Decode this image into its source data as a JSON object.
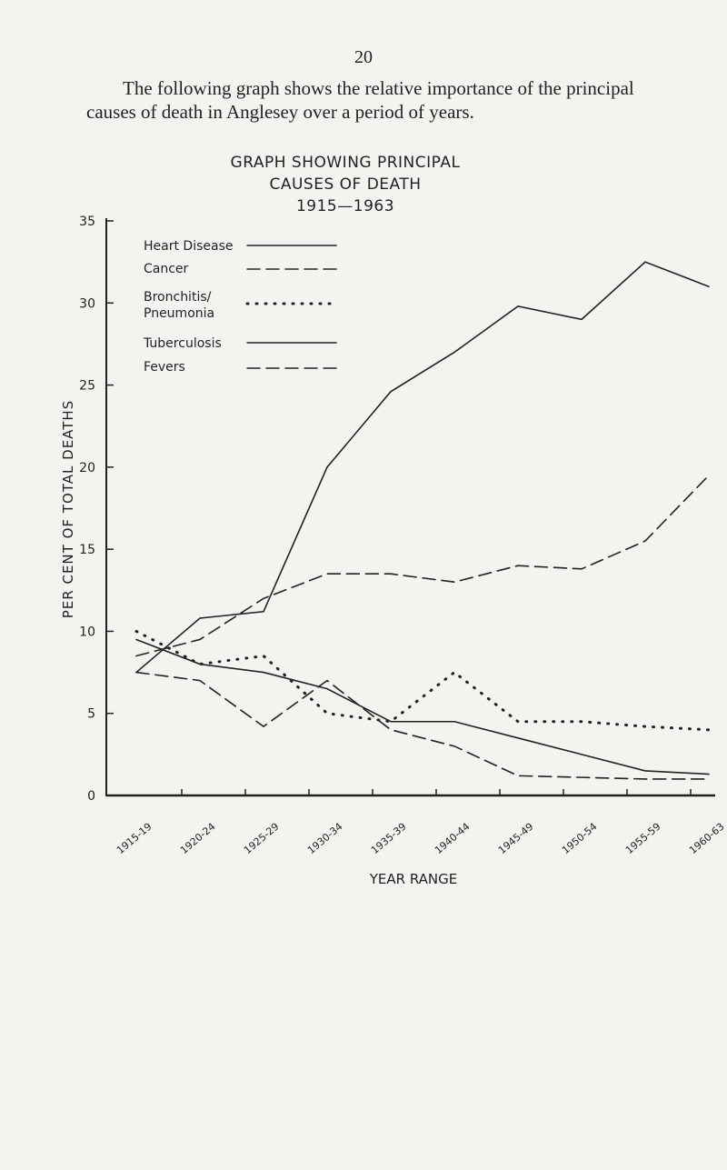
{
  "page_number": "20",
  "intro": "The following graph shows the relative importance of the principal causes of death in Anglesey over a period of years.",
  "chart_data": {
    "type": "line",
    "title": "GRAPH SHOWING PRINCIPAL\nCAUSES OF DEATH\n1915—1963",
    "y_label": "PER CENT OF TOTAL DEATHS",
    "x_label": "YEAR RANGE",
    "categories": [
      "1915-19",
      "1920-24",
      "1925-29",
      "1930-34",
      "1935-39",
      "1940-44",
      "1945-49",
      "1950-54",
      "1955-59",
      "1960-63"
    ],
    "series": [
      {
        "name": "Heart Disease",
        "color": "#222222",
        "dash": "solid",
        "values": [
          7.5,
          10.8,
          11.2,
          20,
          24.6,
          27,
          29.8,
          29,
          32.5,
          31
        ]
      },
      {
        "name": "Cancer",
        "color": "#222222",
        "dash": "dashed",
        "values": [
          8.5,
          9.5,
          12,
          13.5,
          13.5,
          13,
          14,
          13.8,
          15.5,
          19.5
        ]
      },
      {
        "name": "Bronchitis/ Pneumonia",
        "color": "#222222",
        "dash": "dotted",
        "values": [
          10,
          8,
          8.5,
          5,
          4.5,
          7.5,
          4.5,
          4.5,
          4.2,
          4
        ]
      },
      {
        "name": "Tuberculosis",
        "color": "#222222",
        "dash": "solid",
        "values": [
          9.5,
          8,
          7.5,
          6.5,
          4.5,
          4.5,
          3.5,
          2.5,
          1.5,
          1.3
        ]
      },
      {
        "name": "Fevers",
        "color": "#222222",
        "dash": "dashed",
        "values": [
          7.5,
          7,
          4.2,
          7,
          4,
          3,
          1.2,
          1.1,
          1,
          1
        ]
      }
    ],
    "ylim": [
      0,
      35
    ],
    "yticks": [
      0,
      5,
      10,
      15,
      20,
      25,
      30,
      35
    ]
  }
}
